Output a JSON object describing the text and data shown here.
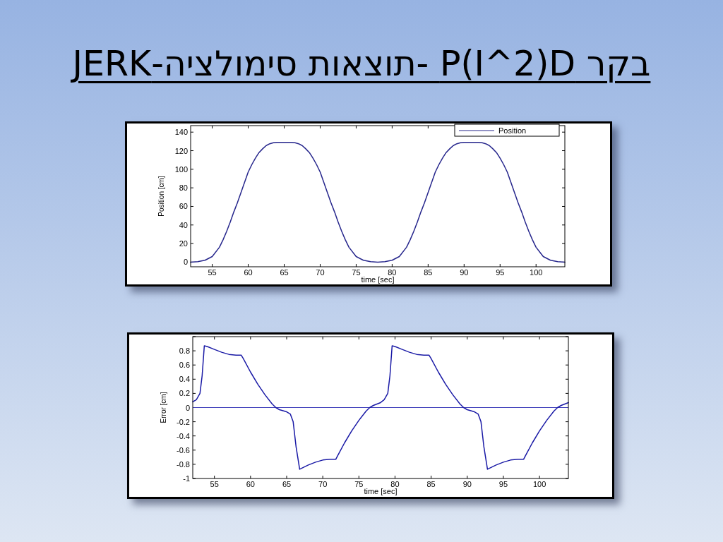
{
  "chart_data": [
    {
      "type": "line",
      "title": "בקר P(I^2)D -תוצאות סימולציה-JERK",
      "xlabel": "time [sec]",
      "ylabel": "Position [cm]",
      "xlim": [
        52,
        104
      ],
      "xticks": [
        55,
        60,
        65,
        70,
        75,
        80,
        85,
        90,
        95,
        100
      ],
      "ylim": [
        -5,
        147
      ],
      "yticks": [
        0,
        20,
        40,
        60,
        80,
        100,
        120,
        140
      ],
      "legend": "top right",
      "grid": false,
      "series": [
        {
          "name": "Position",
          "color": "#26268c",
          "x": [
            52,
            53,
            54,
            55,
            56,
            56.5,
            57,
            57.5,
            58,
            58.5,
            59,
            59.5,
            60,
            60.5,
            61,
            61.5,
            62,
            62.5,
            63,
            63.5,
            64,
            65,
            66,
            66.5,
            67,
            67.5,
            68,
            68.5,
            69,
            69.5,
            70,
            70.5,
            71,
            71.5,
            72,
            72.5,
            73,
            73.5,
            74,
            75,
            76,
            77,
            78,
            79,
            80,
            81,
            82,
            82.5,
            83,
            83.5,
            84,
            84.5,
            85,
            85.5,
            86,
            86.5,
            87,
            87.5,
            88,
            88.5,
            89,
            89.5,
            90,
            91,
            92,
            92.5,
            93,
            93.5,
            94,
            94.5,
            95,
            95.5,
            96,
            96.5,
            97,
            97.5,
            98,
            98.5,
            99,
            99.5,
            100,
            101,
            102,
            103,
            104
          ],
          "values": [
            0,
            0.5,
            2,
            6,
            16,
            24,
            33,
            43,
            54,
            64,
            75,
            86,
            97,
            105,
            112,
            118,
            122,
            125.5,
            127.5,
            128.5,
            129,
            129,
            129,
            128.5,
            127.5,
            125.5,
            122,
            118,
            112,
            105,
            97,
            86,
            75,
            64,
            54,
            43,
            33,
            24,
            16,
            6,
            2,
            0.5,
            0,
            0.5,
            2,
            6,
            16,
            24,
            33,
            43,
            54,
            64,
            75,
            86,
            97,
            105,
            112,
            118,
            122,
            125.5,
            127.5,
            128.5,
            129,
            129,
            129,
            128.5,
            127.5,
            125.5,
            122,
            118,
            112,
            105,
            97,
            86,
            75,
            64,
            54,
            43,
            33,
            24,
            16,
            6,
            2,
            0.5,
            0
          ]
        }
      ]
    },
    {
      "type": "line",
      "xlabel": "time [sec]",
      "ylabel": "Error [cm]",
      "xlim": [
        52,
        104
      ],
      "xticks": [
        55,
        60,
        65,
        70,
        75,
        80,
        85,
        90,
        95,
        100
      ],
      "ylim": [
        -1,
        1
      ],
      "yticks": [
        -1,
        -0.8,
        -0.6,
        -0.4,
        -0.2,
        0,
        0.2,
        0.4,
        0.6,
        0.8,
        {
          "value": 1,
          "label": null
        }
      ],
      "grid": false,
      "ref_lines": [
        {
          "axis": "y",
          "value": 0,
          "color": "#3a3ab8"
        }
      ],
      "series": [
        {
          "color": "#1a1aa6",
          "x": [
            52,
            52.5,
            53,
            53.3,
            53.6,
            54,
            55,
            56,
            57,
            58,
            58.7,
            59,
            60,
            61,
            62,
            63,
            63.5,
            64,
            65,
            65.5,
            65.9,
            66.3,
            66.8,
            67,
            68,
            69,
            70,
            71,
            71.8,
            72,
            73,
            74,
            75,
            76,
            76.5,
            77,
            78,
            78.5,
            79,
            79.3,
            79.6,
            80,
            81,
            82,
            83,
            84,
            84.7,
            85,
            86,
            87,
            88,
            89,
            89.5,
            90,
            91,
            91.5,
            91.9,
            92.3,
            92.8,
            93,
            94,
            95,
            96,
            97,
            97.8,
            98,
            99,
            100,
            101,
            102,
            102.5,
            103,
            104
          ],
          "values": [
            0.08,
            0.11,
            0.2,
            0.45,
            0.87,
            0.86,
            0.82,
            0.78,
            0.75,
            0.74,
            0.74,
            0.69,
            0.5,
            0.33,
            0.18,
            0.05,
            0,
            -0.03,
            -0.06,
            -0.09,
            -0.2,
            -0.55,
            -0.87,
            -0.86,
            -0.81,
            -0.77,
            -0.74,
            -0.73,
            -0.73,
            -0.69,
            -0.5,
            -0.33,
            -0.18,
            -0.05,
            0,
            0.03,
            0.07,
            0.11,
            0.2,
            0.45,
            0.87,
            0.86,
            0.82,
            0.78,
            0.75,
            0.74,
            0.74,
            0.69,
            0.5,
            0.33,
            0.18,
            0.05,
            0,
            -0.03,
            -0.06,
            -0.09,
            -0.2,
            -0.55,
            -0.87,
            -0.86,
            -0.81,
            -0.77,
            -0.74,
            -0.73,
            -0.73,
            -0.69,
            -0.5,
            -0.33,
            -0.18,
            -0.05,
            0,
            0.03,
            0.07
          ]
        }
      ]
    }
  ]
}
